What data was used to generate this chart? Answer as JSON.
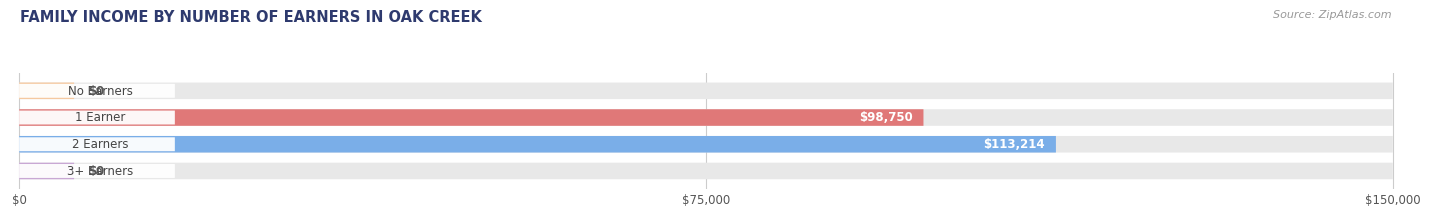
{
  "title": "FAMILY INCOME BY NUMBER OF EARNERS IN OAK CREEK",
  "source": "Source: ZipAtlas.com",
  "categories": [
    "No Earners",
    "1 Earner",
    "2 Earners",
    "3+ Earners"
  ],
  "values": [
    0,
    98750,
    113214,
    0
  ],
  "bar_colors": [
    "#f5c9a0",
    "#e07878",
    "#7aaee8",
    "#c9a8d4"
  ],
  "bar_bg_color": "#e8e8e8",
  "value_labels": [
    "$0",
    "$98,750",
    "$113,214",
    "$0"
  ],
  "xlim_data": [
    0,
    150000
  ],
  "xticks": [
    0,
    75000,
    150000
  ],
  "xtick_labels": [
    "$0",
    "$75,000",
    "$150,000"
  ],
  "title_color": "#2e3a6e",
  "label_color": "#555555",
  "source_color": "#999999",
  "background_color": "#ffffff",
  "pill_bg_color": "#ffffff",
  "pill_text_color": "#444444"
}
